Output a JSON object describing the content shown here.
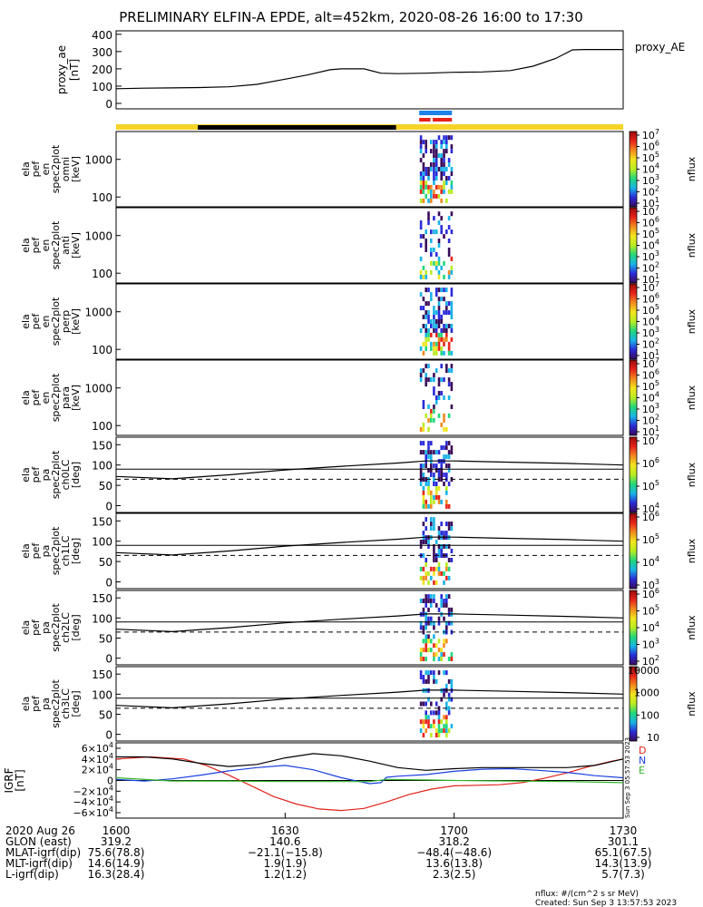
{
  "title": "PRELIMINARY ELFIN-A EPDE, alt=452km, 2020-08-26 16:00 to 17:30",
  "colors": {
    "yellow": "#f5d327",
    "black_bar": "#000000",
    "blue_bar": "#1d83e8",
    "red_bar": "#e8211a",
    "line_D": "#e0231b",
    "line_N": "#1a3fe0",
    "line_E": "#31b52b",
    "line_total": "#000000"
  },
  "colorbar_gradient": [
    "#3a0a5a",
    "#2a2bd8",
    "#18b4e8",
    "#22d87a",
    "#b9ec22",
    "#f2e51f",
    "#f38a1f",
    "#e8231a",
    "#9b0c0c"
  ],
  "xaxis": {
    "start": 0,
    "end": 90,
    "major_ticks": [
      0,
      30,
      60,
      90
    ]
  },
  "chart_data": [
    {
      "type": "line",
      "name": "proxy_ae",
      "ylabel": [
        "proxy_ae",
        "[nT]"
      ],
      "legend": "proxy_AE",
      "ylim": [
        0,
        420
      ],
      "yticks": [
        0,
        100,
        200,
        300,
        400
      ],
      "x": [
        0,
        5,
        10,
        15,
        20,
        25,
        30,
        34,
        38,
        40,
        44,
        47,
        50,
        55,
        60,
        65,
        70,
        74,
        78,
        81,
        83,
        86,
        90
      ],
      "y": [
        85,
        88,
        90,
        92,
        96,
        110,
        140,
        165,
        195,
        200,
        200,
        175,
        172,
        175,
        180,
        182,
        190,
        215,
        260,
        310,
        312,
        312,
        312
      ]
    },
    {
      "type": "spectrogram",
      "name": "omni",
      "ylabel": [
        "ela",
        "pef",
        "en",
        "spec2plot",
        "omni",
        "[keV]"
      ],
      "yticks": [
        "1000",
        "100"
      ],
      "colorbar": {
        "label": "nflux",
        "ticks": [
          "10^7",
          "10^6",
          "10^5",
          "10^4",
          "10^3",
          "10^2",
          "10^1"
        ]
      }
    },
    {
      "type": "spectrogram",
      "name": "anti",
      "ylabel": [
        "ela",
        "pef",
        "en",
        "spec2plot",
        "anti",
        "[keV]"
      ],
      "yticks": [
        "1000",
        "100"
      ],
      "colorbar": {
        "label": "nflux",
        "ticks": [
          "10^7",
          "10^6",
          "10^5",
          "10^4",
          "10^3",
          "10^2",
          "10^1"
        ]
      }
    },
    {
      "type": "spectrogram",
      "name": "perp",
      "ylabel": [
        "ela",
        "pef",
        "en",
        "spec2plot",
        "perp",
        "[keV]"
      ],
      "yticks": [
        "1000",
        "100"
      ],
      "colorbar": {
        "label": "nflux",
        "ticks": [
          "10^7",
          "10^6",
          "10^5",
          "10^4",
          "10^3",
          "10^2",
          "10^1"
        ]
      }
    },
    {
      "type": "spectrogram",
      "name": "para",
      "ylabel": [
        "ela",
        "pef",
        "en",
        "spec2plot",
        "para",
        "[keV]"
      ],
      "yticks": [
        "1000",
        "100"
      ],
      "colorbar": {
        "label": "nflux",
        "ticks": [
          "10^7",
          "10^6",
          "10^5",
          "10^4",
          "10^3",
          "10^2",
          "10^1"
        ]
      }
    },
    {
      "type": "spectrogram",
      "name": "ch0LC",
      "ylabel": [
        "ela",
        "pef",
        "pa",
        "spec2plot",
        "ch0LC",
        "[deg]"
      ],
      "yticks": [
        "150",
        "100",
        "50",
        "0"
      ],
      "colorbar": {
        "label": "nflux",
        "ticks": [
          "10^7",
          "10^6",
          "10^5",
          "10^4"
        ]
      }
    },
    {
      "type": "spectrogram",
      "name": "ch1LC",
      "ylabel": [
        "ela",
        "pef",
        "pa",
        "spec2plot",
        "ch1LC",
        "[deg]"
      ],
      "yticks": [
        "150",
        "100",
        "50",
        "0"
      ],
      "colorbar": {
        "label": "nflux",
        "ticks": [
          "10^6",
          "10^5",
          "10^4",
          "10^3"
        ]
      }
    },
    {
      "type": "spectrogram",
      "name": "ch2LC",
      "ylabel": [
        "ela",
        "pef",
        "pa",
        "spec2plot",
        "ch2LC",
        "[deg]"
      ],
      "yticks": [
        "150",
        "100",
        "50",
        "0"
      ],
      "colorbar": {
        "label": "nflux",
        "ticks": [
          "10^6",
          "10^5",
          "10^4",
          "10^3",
          "10^2"
        ]
      }
    },
    {
      "type": "spectrogram",
      "name": "ch3LC",
      "ylabel": [
        "ela",
        "pef",
        "pa",
        "spec2plot",
        "ch3LC",
        "[deg]"
      ],
      "yticks": [
        "150",
        "100",
        "50",
        "0"
      ],
      "colorbar": {
        "label": "nflux",
        "ticks": [
          "10000",
          "1000",
          "100",
          "10"
        ]
      }
    },
    {
      "type": "line",
      "name": "IGRF",
      "ylabel": [
        "IGRF",
        "[nT]"
      ],
      "yticks": [
        "6×10^4",
        "4×10^4",
        "2×10^4",
        "0",
        "−2×10^4",
        "−4×10^4",
        "−6×10^4"
      ],
      "ylim": [
        -60000,
        60000
      ],
      "series": [
        {
          "name": "D",
          "color": "#e0231b",
          "x": [
            0,
            6,
            12,
            16,
            20,
            24,
            28,
            32,
            36,
            40,
            44,
            48,
            52,
            56,
            60,
            64,
            68,
            72,
            76,
            80,
            84,
            88,
            90
          ],
          "y": [
            40000,
            44000,
            40000,
            28000,
            10000,
            -10000,
            -30000,
            -44000,
            -53000,
            -56000,
            -52000,
            -40000,
            -26000,
            -16000,
            -10000,
            -9000,
            -8000,
            -4000,
            4000,
            14000,
            26000,
            36000,
            40000
          ]
        },
        {
          "name": "N",
          "color": "#1a3fe0",
          "x": [
            0,
            5,
            10,
            15,
            20,
            25,
            30,
            35,
            40,
            45,
            47,
            48,
            50,
            55,
            60,
            65,
            70,
            75,
            80,
            85,
            90
          ],
          "y": [
            2000,
            -1000,
            3000,
            10000,
            18000,
            24000,
            28000,
            20000,
            5000,
            -6000,
            -4000,
            6000,
            8000,
            11000,
            17000,
            21000,
            22000,
            19000,
            15000,
            9000,
            5000
          ]
        },
        {
          "name": "E",
          "color": "#31b52b",
          "x": [
            0,
            10,
            20,
            30,
            40,
            45,
            48,
            55,
            60,
            70,
            80,
            90
          ],
          "y": [
            5000,
            -1000,
            -1000,
            -2000,
            -2000,
            -2000,
            2000,
            1000,
            0,
            -1000,
            -2000,
            -4000
          ]
        },
        {
          "name": "total",
          "color": "#000000",
          "x": [
            0,
            5,
            10,
            15,
            20,
            25,
            30,
            35,
            40,
            45,
            50,
            55,
            60,
            65,
            70,
            75,
            80,
            85,
            90
          ],
          "y": [
            44000,
            44000,
            40000,
            32000,
            26000,
            30000,
            42000,
            50000,
            46000,
            36000,
            24000,
            19000,
            22000,
            24000,
            24000,
            24000,
            24000,
            28000,
            40000
          ]
        }
      ]
    }
  ],
  "legend_igrf": [
    "D",
    "N",
    "E"
  ],
  "sidebar_text": "Sun Sep  3 05:57:53 2023",
  "footer": {
    "rows": [
      {
        "label": "2020 Aug 26",
        "values": [
          "1600",
          "1630",
          "1700",
          "1730"
        ]
      },
      {
        "label": "GLON (east)",
        "values": [
          "319.2",
          "140.6",
          "318.2",
          "301.1"
        ]
      },
      {
        "label": "MLAT-igrf(dip)",
        "values": [
          "75.6(78.8)",
          "−21.1(−15.8)",
          "−48.4(−48.6)",
          "65.1(67.5)"
        ]
      },
      {
        "label": "MLT-igrf(dip)",
        "values": [
          "14.6(14.9)",
          "1.9(1.9)",
          "13.6(13.8)",
          "14.3(13.9)"
        ]
      },
      {
        "label": "L-igrf(dip)",
        "values": [
          "16.3(28.4)",
          "1.2(1.2)",
          "2.3(2.5)",
          "5.7(7.3)"
        ]
      }
    ],
    "units_note": "nflux: #/(cm^2 s sr MeV)",
    "created": "Created: Sun Sep  3 13:57:53 2023"
  }
}
